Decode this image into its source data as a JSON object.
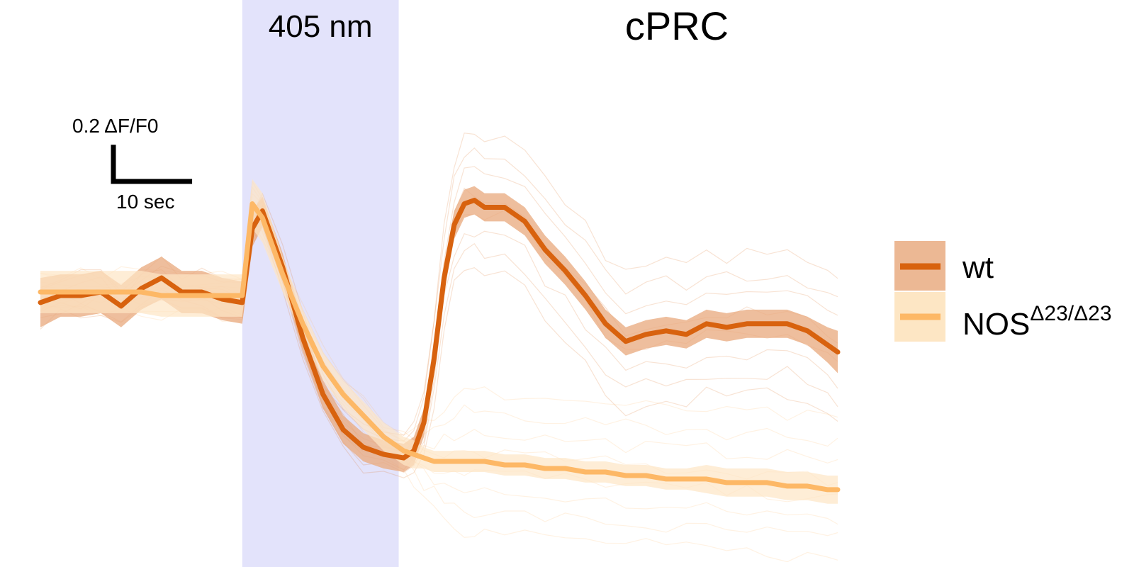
{
  "chart_data": {
    "type": "line",
    "title": "cPRC",
    "stimulus": {
      "label": "405 nm",
      "x_range": [
        20,
        35.5
      ],
      "color": "#e3e3fb"
    },
    "x": [
      0,
      2,
      4,
      6,
      8,
      10,
      12,
      14,
      16,
      18,
      20,
      21,
      22,
      24,
      26,
      28,
      30,
      32,
      34,
      36,
      37,
      38,
      39,
      40,
      41,
      42,
      43,
      44,
      46,
      48,
      50,
      52,
      54,
      56,
      58,
      60,
      62,
      64,
      66,
      68,
      70,
      72,
      74,
      76,
      78,
      79
    ],
    "xlim": [
      -4,
      80
    ],
    "ylim": [
      -0.68,
      0.58
    ],
    "series": [
      {
        "name": "wt",
        "color": "#d8620e",
        "band_color": "#e9ac81",
        "values": [
          -0.03,
          -0.01,
          -0.01,
          0.0,
          -0.04,
          0.01,
          0.04,
          0.0,
          0.0,
          -0.02,
          -0.03,
          0.18,
          0.23,
          0.07,
          -0.13,
          -0.29,
          -0.39,
          -0.44,
          -0.46,
          -0.47,
          -0.45,
          -0.37,
          -0.19,
          0.04,
          0.19,
          0.25,
          0.26,
          0.24,
          0.24,
          0.2,
          0.12,
          0.06,
          -0.01,
          -0.09,
          -0.14,
          -0.12,
          -0.11,
          -0.12,
          -0.09,
          -0.1,
          -0.09,
          -0.09,
          -0.09,
          -0.11,
          -0.15,
          -0.17
        ],
        "band": [
          0.07,
          0.06,
          0.06,
          0.06,
          0.06,
          0.06,
          0.06,
          0.06,
          0.06,
          0.06,
          0.06,
          0.05,
          0.04,
          0.04,
          0.04,
          0.04,
          0.04,
          0.04,
          0.04,
          0.04,
          0.04,
          0.04,
          0.04,
          0.04,
          0.04,
          0.04,
          0.04,
          0.04,
          0.04,
          0.04,
          0.04,
          0.04,
          0.04,
          0.04,
          0.04,
          0.04,
          0.04,
          0.04,
          0.04,
          0.04,
          0.04,
          0.04,
          0.04,
          0.04,
          0.05,
          0.06
        ]
      },
      {
        "name": "NOS^Δ23/Δ23",
        "color": "#fdb866",
        "band_color": "#fde6c4",
        "values": [
          0.0,
          0.0,
          0.0,
          0.0,
          0.0,
          0.0,
          -0.01,
          -0.01,
          -0.01,
          -0.01,
          -0.01,
          0.25,
          0.21,
          0.05,
          -0.09,
          -0.21,
          -0.29,
          -0.35,
          -0.41,
          -0.45,
          -0.46,
          -0.47,
          -0.48,
          -0.48,
          -0.48,
          -0.48,
          -0.48,
          -0.48,
          -0.49,
          -0.49,
          -0.5,
          -0.5,
          -0.51,
          -0.51,
          -0.52,
          -0.52,
          -0.53,
          -0.53,
          -0.53,
          -0.54,
          -0.54,
          -0.54,
          -0.55,
          -0.55,
          -0.56,
          -0.56
        ],
        "band": [
          0.06,
          0.06,
          0.06,
          0.06,
          0.06,
          0.06,
          0.06,
          0.06,
          0.06,
          0.06,
          0.06,
          0.07,
          0.07,
          0.05,
          0.04,
          0.04,
          0.04,
          0.04,
          0.04,
          0.04,
          0.04,
          0.03,
          0.03,
          0.03,
          0.03,
          0.03,
          0.03,
          0.03,
          0.03,
          0.03,
          0.03,
          0.03,
          0.03,
          0.03,
          0.03,
          0.03,
          0.03,
          0.03,
          0.04,
          0.04,
          0.04,
          0.04,
          0.04,
          0.04,
          0.04,
          0.04
        ]
      }
    ],
    "scale_bar": {
      "y_label": "0.2 ΔF/F0",
      "y_value": 0.2,
      "x_label": "10 sec",
      "x_value": 10
    },
    "legend": {
      "position": "right",
      "entries": [
        "wt",
        "NOS^Δ23/Δ23"
      ]
    },
    "grid": false,
    "axes_visible": false
  },
  "legend": {
    "wt_label": "wt",
    "nos_base": "NOS",
    "nos_sup": "Δ23/Δ23"
  }
}
